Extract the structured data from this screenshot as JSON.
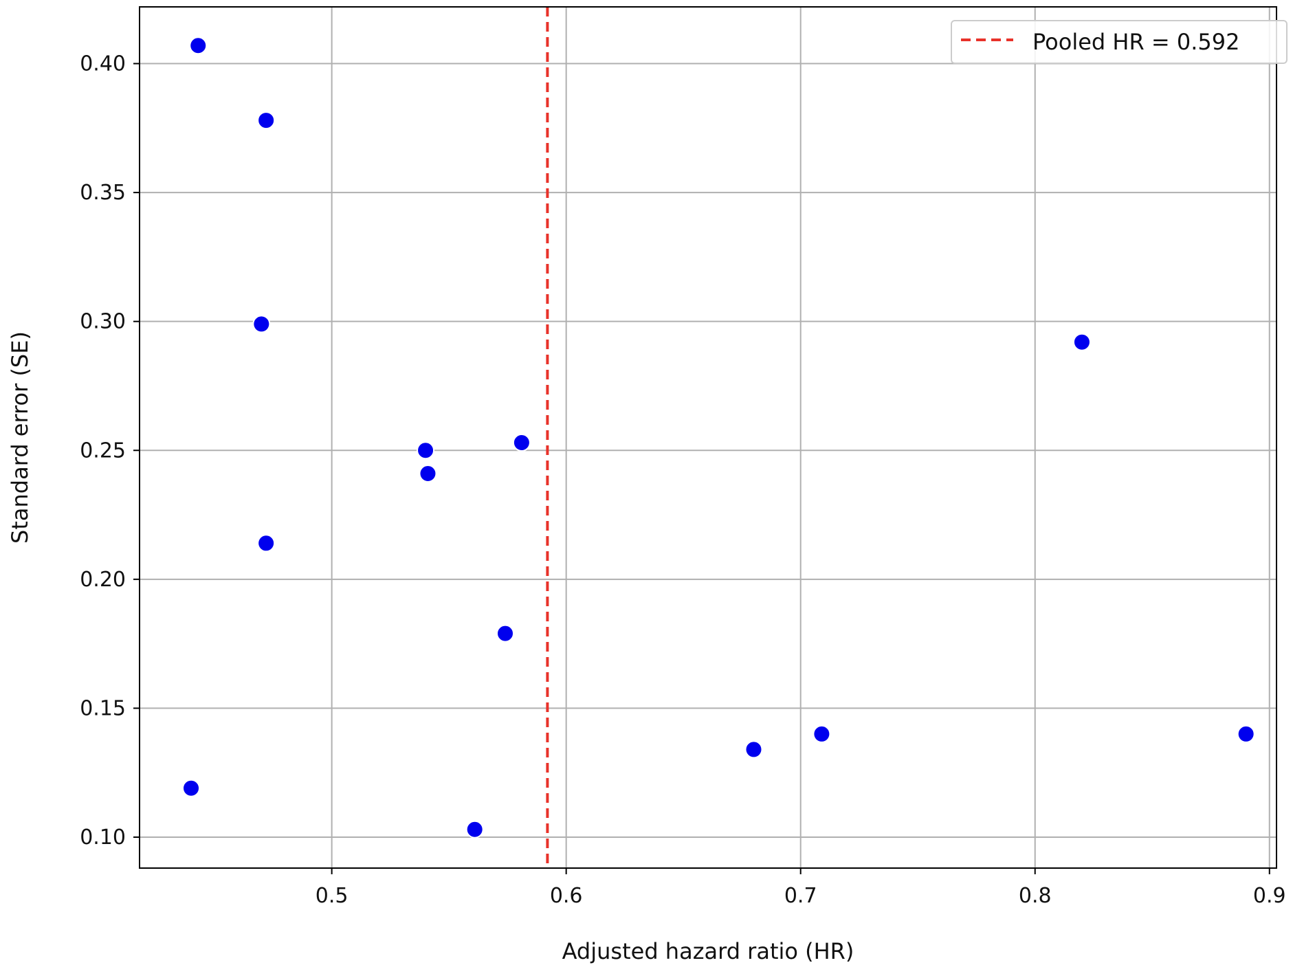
{
  "chart_data": {
    "type": "scatter",
    "title": "",
    "xlabel": "Adjusted hazard ratio (HR)",
    "ylabel": "Standard error (SE)",
    "xlim": [
      0.418,
      0.903
    ],
    "ylim": [
      0.088,
      0.422
    ],
    "xticks": [
      "0.5",
      "0.6",
      "0.7",
      "0.8",
      "0.9"
    ],
    "xtick_values": [
      0.5,
      0.6,
      0.7,
      0.8,
      0.9
    ],
    "yticks": [
      "0.10",
      "0.15",
      "0.20",
      "0.25",
      "0.30",
      "0.35",
      "0.40"
    ],
    "ytick_values": [
      0.1,
      0.15,
      0.2,
      0.25,
      0.3,
      0.35,
      0.4
    ],
    "grid": true,
    "legend_position": "top-right",
    "points": [
      {
        "x": 0.443,
        "y": 0.407
      },
      {
        "x": 0.472,
        "y": 0.378
      },
      {
        "x": 0.47,
        "y": 0.299
      },
      {
        "x": 0.472,
        "y": 0.214
      },
      {
        "x": 0.44,
        "y": 0.119
      },
      {
        "x": 0.54,
        "y": 0.25
      },
      {
        "x": 0.541,
        "y": 0.241
      },
      {
        "x": 0.581,
        "y": 0.253
      },
      {
        "x": 0.574,
        "y": 0.179
      },
      {
        "x": 0.561,
        "y": 0.103
      },
      {
        "x": 0.68,
        "y": 0.134
      },
      {
        "x": 0.709,
        "y": 0.14
      },
      {
        "x": 0.82,
        "y": 0.292
      },
      {
        "x": 0.89,
        "y": 0.14
      }
    ],
    "reference_line": {
      "x": 0.592,
      "label": "Pooled HR = 0.592"
    },
    "colors": {
      "points": "#0000ee",
      "reference_line": "#e8322a",
      "grid": "#b0b0b0",
      "axes": "#000000"
    }
  }
}
